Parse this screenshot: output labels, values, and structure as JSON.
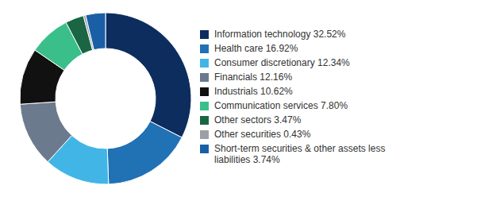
{
  "chart_data": {
    "type": "pie",
    "labels": [
      "Information technology 32.52%",
      "Health care 16.92%",
      "Consumer discretionary 12.34%",
      "Financials 12.16%",
      "Industrials 10.62%",
      "Communication services 7.80%",
      "Other sectors 3.47%",
      "Other securities 0.43%",
      "Short-term securities & other assets less\nliabilities 3.74%"
    ],
    "values": [
      32.52,
      16.92,
      12.34,
      12.16,
      10.62,
      7.8,
      3.47,
      0.43,
      3.74
    ],
    "colors": [
      "#0d2d5e",
      "#2171b5",
      "#41b6e6",
      "#6b7b8d",
      "#111111",
      "#3bbf8a",
      "#1a6644",
      "#9aA0A6",
      "#1a5fa6"
    ],
    "legend": "right"
  }
}
